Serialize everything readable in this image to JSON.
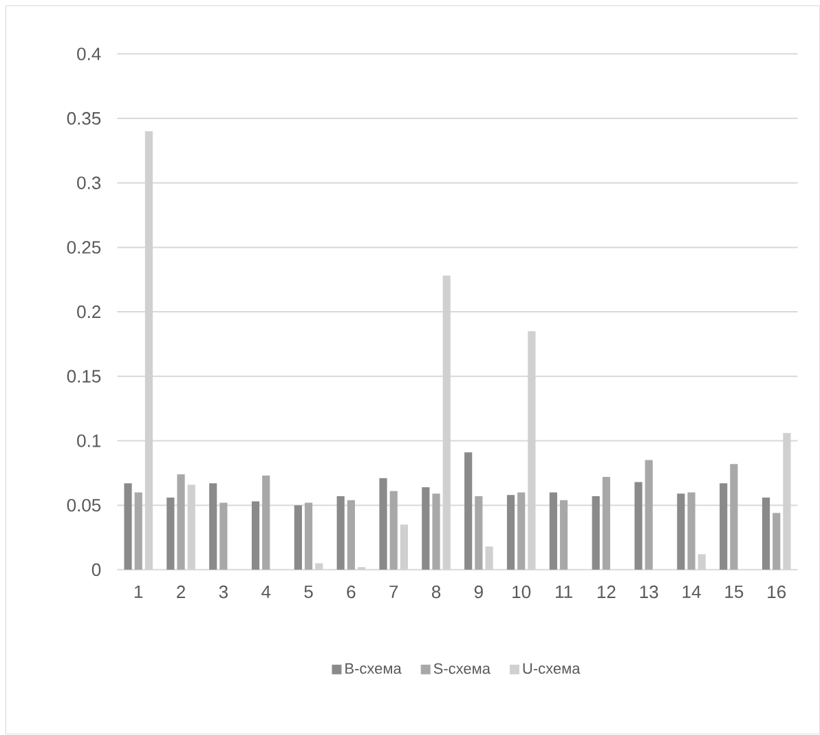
{
  "chart_data": {
    "type": "bar",
    "categories": [
      "1",
      "2",
      "3",
      "4",
      "5",
      "6",
      "7",
      "8",
      "9",
      "10",
      "11",
      "12",
      "13",
      "14",
      "15",
      "16"
    ],
    "series": [
      {
        "name": "B-схема",
        "color": "#8a8a8a",
        "values": [
          0.067,
          0.056,
          0.067,
          0.053,
          0.05,
          0.057,
          0.071,
          0.064,
          0.091,
          0.058,
          0.06,
          0.057,
          0.068,
          0.059,
          0.067,
          0.056
        ]
      },
      {
        "name": "S-схема",
        "color": "#a8a8a8",
        "values": [
          0.06,
          0.074,
          0.052,
          0.073,
          0.052,
          0.054,
          0.061,
          0.059,
          0.057,
          0.06,
          0.054,
          0.072,
          0.085,
          0.06,
          0.082,
          0.044
        ]
      },
      {
        "name": "U-схема",
        "color": "#d0d0d0",
        "values": [
          0.34,
          0.066,
          0,
          0,
          0.005,
          0.002,
          0.035,
          0.228,
          0.018,
          0.185,
          0,
          0,
          0,
          0.012,
          0,
          0.106
        ]
      }
    ],
    "ylim": [
      0,
      0.4
    ],
    "yticks": [
      0,
      0.05,
      0.1,
      0.15,
      0.2,
      0.25,
      0.3,
      0.35,
      0.4
    ],
    "grid": "y",
    "legend": "bottom"
  }
}
